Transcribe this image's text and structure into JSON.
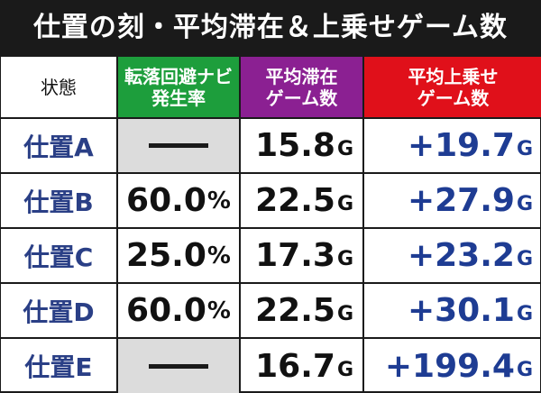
{
  "title": "仕置の刻・平均滞在＆上乗せゲーム数",
  "headers": {
    "state": "状態",
    "navi_rate": "転落回避ナビ\n発生率",
    "avg_stay": "平均滞在\nゲーム数",
    "avg_add": "平均上乗せ\nゲーム数"
  },
  "colors": {
    "green": "#1d9e3c",
    "purple": "#8b2092",
    "red": "#e0101a",
    "label_blue": "#2a3f86"
  },
  "rows": [
    {
      "label": "仕置A",
      "navi": null,
      "navi_display": "—",
      "avg": "15.8",
      "avg_unit": "G",
      "add": "+19.7",
      "add_unit": "G"
    },
    {
      "label": "仕置B",
      "navi": "60.0",
      "navi_unit": "%",
      "avg": "22.5",
      "avg_unit": "G",
      "add": "+27.9",
      "add_unit": "G"
    },
    {
      "label": "仕置C",
      "navi": "25.0",
      "navi_unit": "%",
      "avg": "17.3",
      "avg_unit": "G",
      "add": "+23.2",
      "add_unit": "G"
    },
    {
      "label": "仕置D",
      "navi": "60.0",
      "navi_unit": "%",
      "avg": "22.5",
      "avg_unit": "G",
      "add": "+30.1",
      "add_unit": "G"
    },
    {
      "label": "仕置E",
      "navi": null,
      "navi_display": "—",
      "avg": "16.7",
      "avg_unit": "G",
      "add": "+199.4",
      "add_unit": "G"
    }
  ]
}
